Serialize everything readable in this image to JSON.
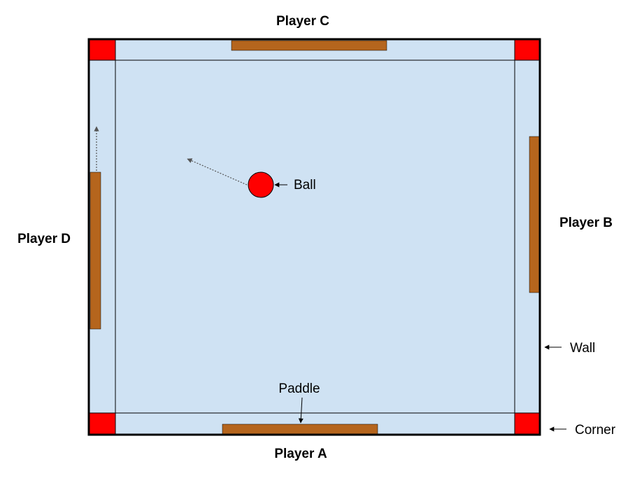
{
  "labels": {
    "player_a": "Player A",
    "player_b": "Player B",
    "player_c": "Player C",
    "player_d": "Player D",
    "ball": "Ball",
    "paddle": "Paddle",
    "wall": "Wall",
    "corner": "Corner"
  },
  "colors": {
    "field": "#cfe2f3",
    "corner": "#ff0000",
    "paddle": "#b5651d",
    "ball": "#ff0000",
    "outline": "#000000",
    "motion_arrow": "#666666"
  }
}
